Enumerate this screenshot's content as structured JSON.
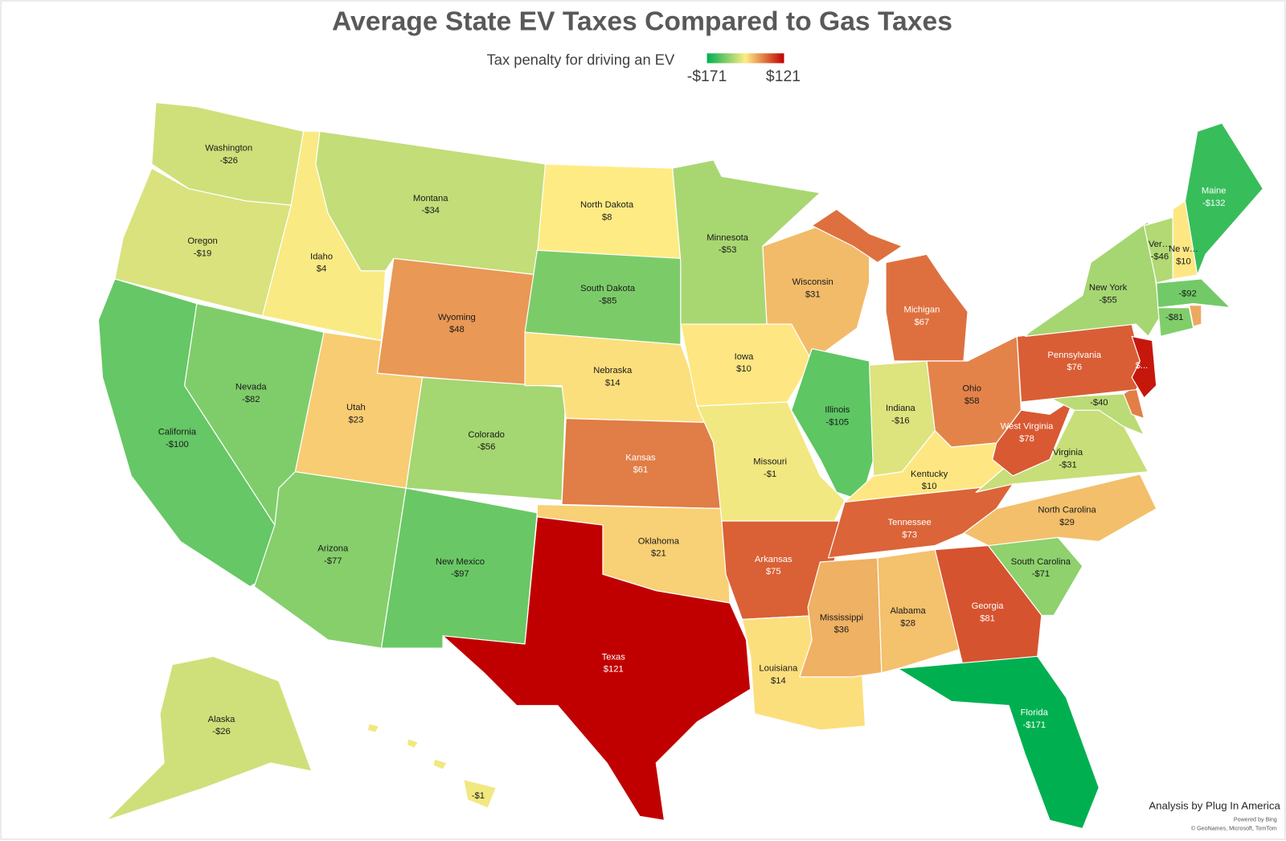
{
  "title": "Average State EV Taxes Compared to Gas Taxes",
  "legend": {
    "label": "Tax penalty for driving an EV",
    "min": -171,
    "max": 121,
    "min_label": "-$171",
    "max_label": "$121",
    "color_scale": [
      "#00b050",
      "#ffeb84",
      "#c00000"
    ]
  },
  "regions": [
    {
      "name": "Washington",
      "value": -26,
      "value_label": "-$26"
    },
    {
      "name": "Oregon",
      "value": -19,
      "value_label": "-$19"
    },
    {
      "name": "California",
      "value": -100,
      "value_label": "-$100"
    },
    {
      "name": "Nevada",
      "value": -82,
      "value_label": "-$82"
    },
    {
      "name": "Idaho",
      "value": 4,
      "value_label": "$4"
    },
    {
      "name": "Montana",
      "value": -34,
      "value_label": "-$34"
    },
    {
      "name": "Wyoming",
      "value": 48,
      "value_label": "$48"
    },
    {
      "name": "Utah",
      "value": 23,
      "value_label": "$23"
    },
    {
      "name": "Colorado",
      "value": -56,
      "value_label": "-$56"
    },
    {
      "name": "Arizona",
      "value": -77,
      "value_label": "-$77"
    },
    {
      "name": "New Mexico",
      "value": -97,
      "value_label": "-$97"
    },
    {
      "name": "North Dakota",
      "value": 8,
      "value_label": "$8"
    },
    {
      "name": "South Dakota",
      "value": -85,
      "value_label": "-$85"
    },
    {
      "name": "Nebraska",
      "value": 14,
      "value_label": "$14"
    },
    {
      "name": "Kansas",
      "value": 61,
      "value_label": "$61"
    },
    {
      "name": "Oklahoma",
      "value": 21,
      "value_label": "$21"
    },
    {
      "name": "Texas",
      "value": 121,
      "value_label": "$121"
    },
    {
      "name": "Minnesota",
      "value": -53,
      "value_label": "-$53"
    },
    {
      "name": "Iowa",
      "value": 10,
      "value_label": "$10"
    },
    {
      "name": "Missouri",
      "value": -1,
      "value_label": "-$1"
    },
    {
      "name": "Arkansas",
      "value": 75,
      "value_label": "$75"
    },
    {
      "name": "Louisiana",
      "value": 14,
      "value_label": "$14"
    },
    {
      "name": "Wisconsin",
      "value": 31,
      "value_label": "$31"
    },
    {
      "name": "Illinois",
      "value": -105,
      "value_label": "-$105"
    },
    {
      "name": "Michigan",
      "value": 67,
      "value_label": "$67"
    },
    {
      "name": "Indiana",
      "value": -16,
      "value_label": "-$16"
    },
    {
      "name": "Ohio",
      "value": 58,
      "value_label": "$58"
    },
    {
      "name": "Kentucky",
      "value": 10,
      "value_label": "$10"
    },
    {
      "name": "Tennessee",
      "value": 73,
      "value_label": "$73"
    },
    {
      "name": "Mississippi",
      "value": 36,
      "value_label": "$36"
    },
    {
      "name": "Alabama",
      "value": 28,
      "value_label": "$28"
    },
    {
      "name": "Georgia",
      "value": 81,
      "value_label": "$81"
    },
    {
      "name": "Florida",
      "value": -171,
      "value_label": "-$171"
    },
    {
      "name": "South Carolina",
      "value": -71,
      "value_label": "-$71"
    },
    {
      "name": "North Carolina",
      "value": 29,
      "value_label": "$29"
    },
    {
      "name": "Virginia",
      "value": -31,
      "value_label": "-$31"
    },
    {
      "name": "West Virginia",
      "value": 78,
      "value_label": "$78"
    },
    {
      "value": -40,
      "value_label": "-$40"
    },
    {
      "value": 60
    },
    {
      "name": "Pennsylvania",
      "value": 76,
      "value_label": "$76"
    },
    {
      "value": 110,
      "value_label": "$..."
    },
    {
      "name": "New York",
      "value": -55,
      "value_label": "-$55"
    },
    {
      "name": "Ver…",
      "value": -46,
      "value_label": "-$46"
    },
    {
      "name": "Ne w…",
      "value": 10,
      "value_label": "$10"
    },
    {
      "name": "Maine",
      "value": -132,
      "value_label": "-$132"
    },
    {
      "value": -92,
      "value_label": "-$92"
    },
    {
      "value": -81,
      "value_label": "-$81"
    },
    {
      "value": 40
    },
    {
      "name": "Alaska",
      "value": -26,
      "value_label": "-$26"
    },
    {
      "value": -1,
      "value_label": "-$1"
    }
  ],
  "credit": "Analysis by Plug In America",
  "powered_by": "Powered by Bing",
  "copyright": "© GeoNames, Microsoft, TomTom"
}
